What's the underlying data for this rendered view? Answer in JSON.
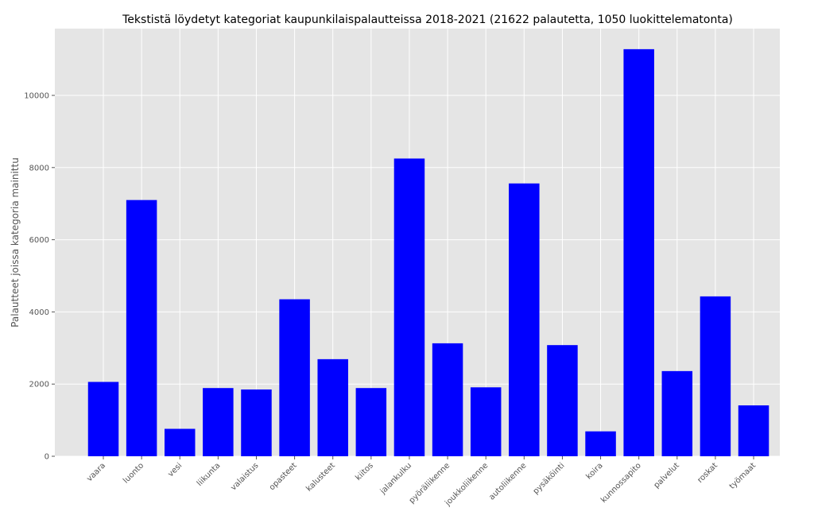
{
  "chart_data": {
    "type": "bar",
    "title": "Tekstistä löydetyt kategoriat kaupunkilaispalautteissa 2018-2021 (21622 palautetta, 1050 luokittelematonta)",
    "xlabel": "",
    "ylabel": "Palautteet joissa kategoria mainittu",
    "categories": [
      "vaara",
      "luonto",
      "vesi",
      "liikunta",
      "valaistus",
      "opasteet",
      "kalusteet",
      "kiitos",
      "jalankulku",
      "pyöräliikenne",
      "joukkoliikenne",
      "autoliikenne",
      "pysäköinti",
      "koira",
      "kunnossapito",
      "palvelut",
      "roskat",
      "työmaat"
    ],
    "values": [
      2060,
      7100,
      760,
      1890,
      1850,
      4350,
      2690,
      1890,
      8250,
      3130,
      1910,
      7560,
      3080,
      690,
      11280,
      2360,
      4430,
      1410
    ],
    "ylim": [
      0,
      11850
    ],
    "yticks": [
      0,
      2000,
      4000,
      6000,
      8000,
      10000
    ],
    "grid": true,
    "colors": {
      "bar": "#0000ff",
      "plot_bg": "#e5e5e5",
      "grid": "#ffffff"
    }
  }
}
